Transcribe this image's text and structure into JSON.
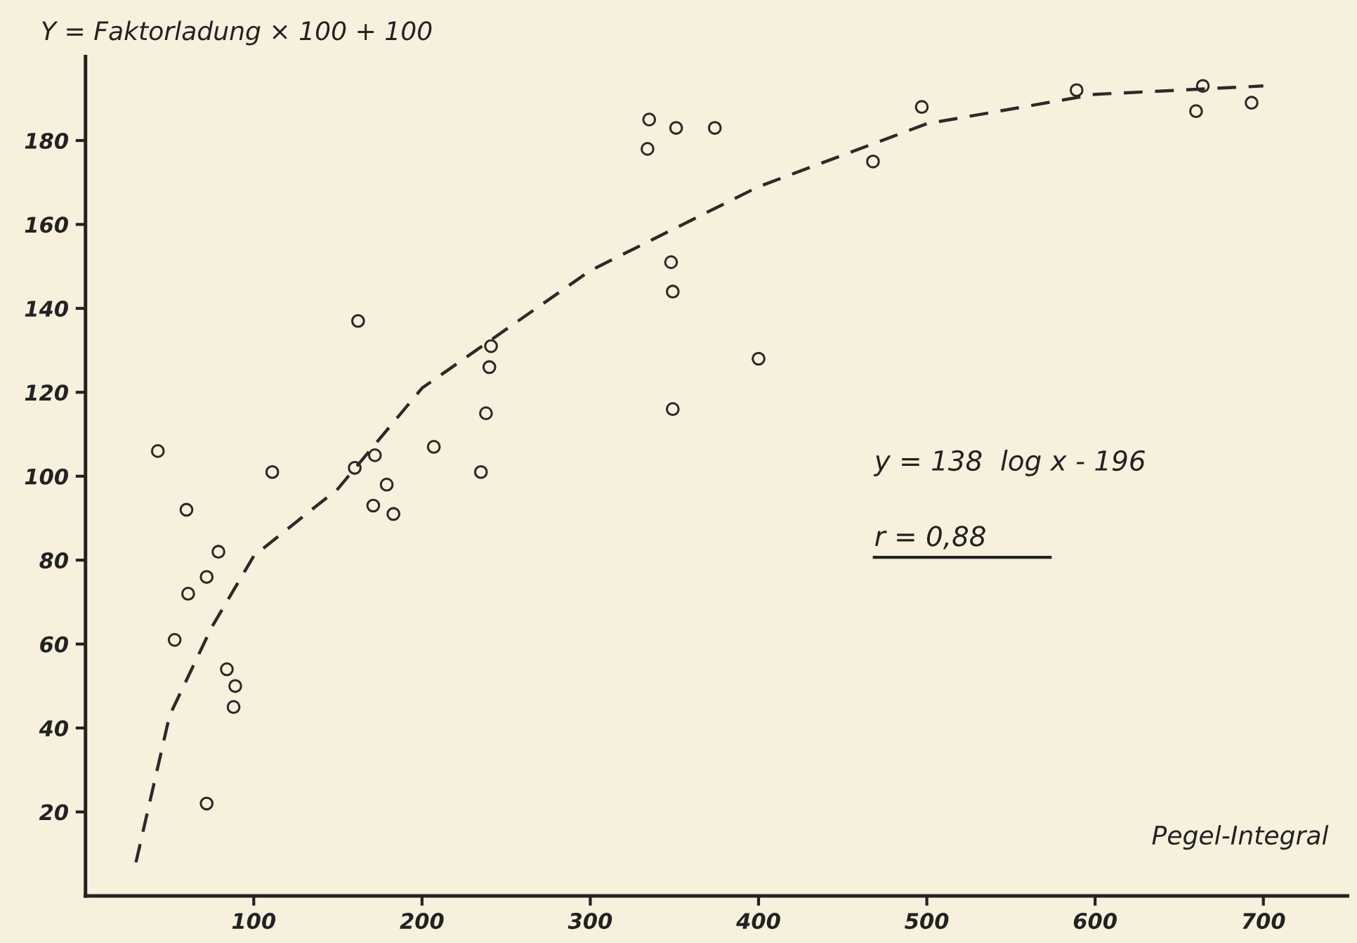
{
  "chart_data": {
    "type": "scatter",
    "ylabel": "Y = Faktorladung × 100 + 100",
    "xlabel": "Pegel-Integral",
    "xlim": [
      0,
      750
    ],
    "ylim": [
      0,
      200
    ],
    "xticks": [
      100,
      200,
      300,
      400,
      500,
      600,
      700
    ],
    "yticks": [
      20,
      40,
      60,
      80,
      100,
      120,
      140,
      160,
      180
    ],
    "grid": false,
    "series": [
      {
        "marker": "circle",
        "color": "#2a2a2a",
        "x": [
          43,
          60,
          61,
          72,
          79,
          53,
          84,
          89,
          88,
          72,
          111,
          162,
          160,
          172,
          171,
          179,
          183,
          207,
          235,
          238,
          240,
          241,
          335,
          334,
          351,
          374,
          348,
          349,
          349,
          400,
          468,
          497,
          589,
          664,
          660,
          693
        ],
        "values": [
          106,
          92,
          72,
          76,
          82,
          61,
          54,
          50,
          45,
          22,
          101,
          137,
          102,
          105,
          93,
          98,
          91,
          107,
          101,
          115,
          126,
          131,
          185,
          178,
          183,
          183,
          151,
          144,
          116,
          128,
          175,
          188,
          192,
          193,
          187,
          189
        ]
      },
      {
        "type": "line",
        "marker": "none",
        "color": "#2a2a2a",
        "line_style": "dashed",
        "x": [
          30,
          50,
          75,
          100,
          150,
          200,
          250,
          300,
          400,
          500,
          600,
          700
        ],
        "values": [
          8,
          43,
          64,
          81,
          97,
          121,
          135,
          149,
          169,
          184,
          191,
          193
        ]
      }
    ],
    "annotations": [
      "y = 138  log x - 196",
      "r = 0,88"
    ]
  }
}
